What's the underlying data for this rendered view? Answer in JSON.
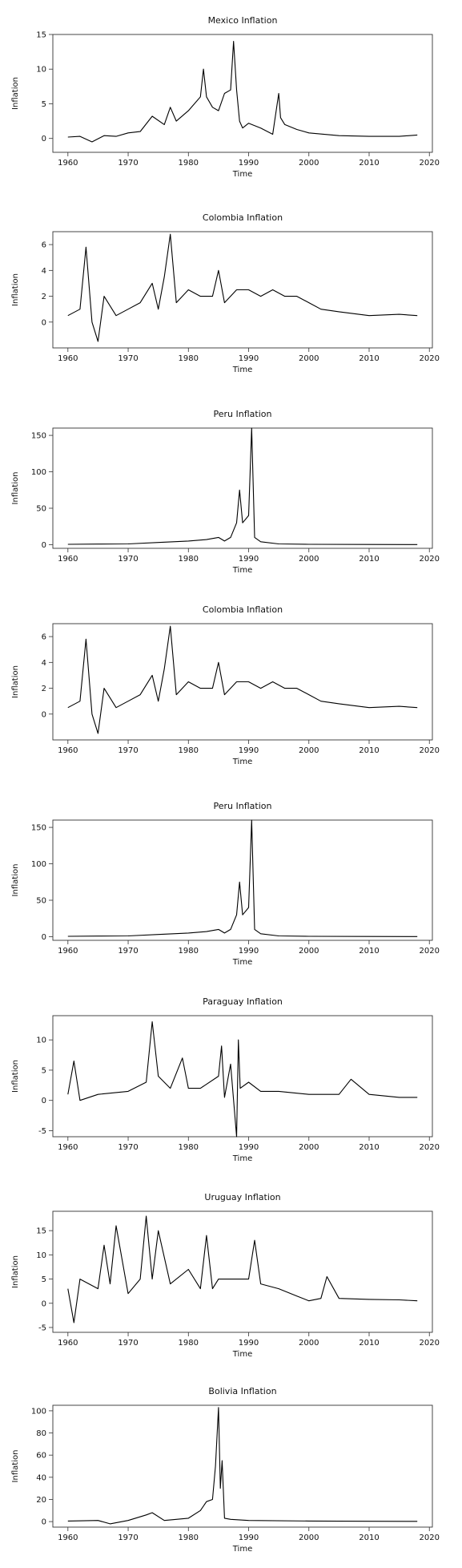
{
  "chart_data": [
    {
      "type": "line",
      "title": "Mexico Inflation",
      "xlabel": "Time",
      "ylabel": "Inflation",
      "xlim": [
        1960,
        2018
      ],
      "ylim": [
        -2,
        15
      ],
      "xticks": [
        1960,
        1970,
        1980,
        1990,
        2000,
        2010,
        2020
      ],
      "yticks": [
        0,
        5,
        10,
        15
      ],
      "grid": false,
      "series": [
        {
          "x": [
            1960,
            1962,
            1964,
            1966,
            1968,
            1970,
            1972,
            1974,
            1976,
            1977,
            1978,
            1980,
            1982,
            1982.5,
            1983,
            1984,
            1985,
            1986,
            1987,
            1987.5,
            1988,
            1988.5,
            1989,
            1990,
            1992,
            1994,
            1995,
            1995.3,
            1996,
            1998,
            2000,
            2005,
            2010,
            2015,
            2018
          ],
          "y": [
            0.2,
            0.3,
            -0.5,
            0.4,
            0.3,
            0.8,
            1.0,
            3.2,
            2.0,
            4.5,
            2.5,
            4.0,
            6.0,
            10.0,
            6.0,
            4.5,
            4.0,
            6.5,
            7.0,
            14.0,
            7.0,
            2.5,
            1.5,
            2.2,
            1.5,
            0.6,
            6.5,
            3.0,
            2.0,
            1.3,
            0.8,
            0.4,
            0.3,
            0.3,
            0.5
          ]
        }
      ]
    },
    {
      "type": "line",
      "title": "Colombia Inflation",
      "xlabel": "Time",
      "ylabel": "Inflation",
      "xlim": [
        1960,
        2018
      ],
      "ylim": [
        -2,
        7
      ],
      "xticks": [
        1960,
        1970,
        1980,
        1990,
        2000,
        2010,
        2020
      ],
      "yticks": [
        0,
        2,
        4,
        6
      ],
      "grid": false,
      "series": [
        {
          "x": [
            1960,
            1962,
            1963,
            1964,
            1965,
            1966,
            1968,
            1970,
            1972,
            1974,
            1975,
            1976,
            1977,
            1978,
            1980,
            1982,
            1984,
            1985,
            1986,
            1988,
            1990,
            1992,
            1994,
            1996,
            1998,
            2000,
            2002,
            2005,
            2010,
            2015,
            2018
          ],
          "y": [
            0.5,
            1.0,
            5.8,
            0.0,
            -1.5,
            2.0,
            0.5,
            1.0,
            1.5,
            3.0,
            1.0,
            3.5,
            6.8,
            1.5,
            2.5,
            2.0,
            2.0,
            4.0,
            1.5,
            2.5,
            2.5,
            2.0,
            2.5,
            2.0,
            2.0,
            1.5,
            1.0,
            0.8,
            0.5,
            0.6,
            0.5
          ]
        }
      ]
    },
    {
      "type": "line",
      "title": "Peru Inflation",
      "xlabel": "Time",
      "ylabel": "Inflation",
      "xlim": [
        1960,
        2018
      ],
      "ylim": [
        -5,
        160
      ],
      "xticks": [
        1960,
        1970,
        1980,
        1990,
        2000,
        2010,
        2020
      ],
      "yticks": [
        0,
        50,
        100,
        150
      ],
      "grid": false,
      "series": [
        {
          "x": [
            1960,
            1965,
            1970,
            1975,
            1980,
            1983,
            1985,
            1986,
            1987,
            1988,
            1988.5,
            1989,
            1990,
            1990.5,
            1991,
            1992,
            1995,
            2000,
            2010,
            2018
          ],
          "y": [
            0.5,
            0.8,
            1.0,
            3.0,
            5.0,
            7.0,
            10.0,
            5.0,
            10.0,
            30.0,
            75.0,
            30.0,
            40.0,
            160.0,
            10.0,
            4.0,
            1.0,
            0.5,
            0.3,
            0.2
          ]
        }
      ]
    },
    {
      "type": "line",
      "title": "Colombia Inflation",
      "xlabel": "Time",
      "ylabel": "Inflation",
      "xlim": [
        1960,
        2018
      ],
      "ylim": [
        -2,
        7
      ],
      "xticks": [
        1960,
        1970,
        1980,
        1990,
        2000,
        2010,
        2020
      ],
      "yticks": [
        0,
        2,
        4,
        6
      ],
      "grid": false,
      "series": [
        {
          "x": [
            1960,
            1962,
            1963,
            1964,
            1965,
            1966,
            1968,
            1970,
            1972,
            1974,
            1975,
            1976,
            1977,
            1978,
            1980,
            1982,
            1984,
            1985,
            1986,
            1988,
            1990,
            1992,
            1994,
            1996,
            1998,
            2000,
            2002,
            2005,
            2010,
            2015,
            2018
          ],
          "y": [
            0.5,
            1.0,
            5.8,
            0.0,
            -1.5,
            2.0,
            0.5,
            1.0,
            1.5,
            3.0,
            1.0,
            3.5,
            6.8,
            1.5,
            2.5,
            2.0,
            2.0,
            4.0,
            1.5,
            2.5,
            2.5,
            2.0,
            2.5,
            2.0,
            2.0,
            1.5,
            1.0,
            0.8,
            0.5,
            0.6,
            0.5
          ]
        }
      ]
    },
    {
      "type": "line",
      "title": "Peru Inflation",
      "xlabel": "Time",
      "ylabel": "Inflation",
      "xlim": [
        1960,
        2018
      ],
      "ylim": [
        -5,
        160
      ],
      "xticks": [
        1960,
        1970,
        1980,
        1990,
        2000,
        2010,
        2020
      ],
      "yticks": [
        0,
        50,
        100,
        150
      ],
      "grid": false,
      "series": [
        {
          "x": [
            1960,
            1965,
            1970,
            1975,
            1980,
            1983,
            1985,
            1986,
            1987,
            1988,
            1988.5,
            1989,
            1990,
            1990.5,
            1991,
            1992,
            1995,
            2000,
            2010,
            2018
          ],
          "y": [
            0.5,
            0.8,
            1.0,
            3.0,
            5.0,
            7.0,
            10.0,
            5.0,
            10.0,
            30.0,
            75.0,
            30.0,
            40.0,
            160.0,
            10.0,
            4.0,
            1.0,
            0.5,
            0.3,
            0.2
          ]
        }
      ]
    },
    {
      "type": "line",
      "title": "Paraguay Inflation",
      "xlabel": "Time",
      "ylabel": "Inflation",
      "xlim": [
        1960,
        2018
      ],
      "ylim": [
        -6,
        14
      ],
      "xticks": [
        1960,
        1970,
        1980,
        1990,
        2000,
        2010,
        2020
      ],
      "yticks": [
        -5,
        0,
        5,
        10
      ],
      "grid": false,
      "series": [
        {
          "x": [
            1960,
            1961,
            1962,
            1965,
            1970,
            1973,
            1974,
            1975,
            1977,
            1979,
            1980,
            1982,
            1985,
            1985.5,
            1986,
            1987,
            1988,
            1988.3,
            1988.6,
            1990,
            1992,
            1995,
            2000,
            2005,
            2007,
            2010,
            2015,
            2018
          ],
          "y": [
            1.0,
            6.5,
            0.0,
            1.0,
            1.5,
            3.0,
            13.0,
            4.0,
            2.0,
            7.0,
            2.0,
            2.0,
            4.0,
            9.0,
            0.5,
            6.0,
            -6.0,
            10.0,
            2.0,
            3.0,
            1.5,
            1.5,
            1.0,
            1.0,
            3.5,
            1.0,
            0.5,
            0.5
          ]
        }
      ]
    },
    {
      "type": "line",
      "title": "Uruguay Inflation",
      "xlabel": "Time",
      "ylabel": "Inflation",
      "xlim": [
        1960,
        2018
      ],
      "ylim": [
        -6,
        19
      ],
      "xticks": [
        1960,
        1970,
        1980,
        1990,
        2000,
        2010,
        2020
      ],
      "yticks": [
        -5,
        0,
        5,
        10,
        15
      ],
      "grid": false,
      "series": [
        {
          "x": [
            1960,
            1961,
            1962,
            1965,
            1966,
            1967,
            1968,
            1970,
            1972,
            1973,
            1974,
            1975,
            1977,
            1980,
            1982,
            1983,
            1984,
            1985,
            1988,
            1990,
            1991,
            1992,
            1995,
            1998,
            2000,
            2002,
            2003,
            2005,
            2010,
            2015,
            2018
          ],
          "y": [
            3.0,
            -4.0,
            5.0,
            3.0,
            12.0,
            4.0,
            16.0,
            2.0,
            5.0,
            18.0,
            5.0,
            15.0,
            4.0,
            7.0,
            3.0,
            14.0,
            3.0,
            5.0,
            5.0,
            5.0,
            13.0,
            4.0,
            3.0,
            1.5,
            0.5,
            1.0,
            5.5,
            1.0,
            0.8,
            0.7,
            0.5
          ]
        }
      ]
    },
    {
      "type": "line",
      "title": "Bolivia Inflation",
      "xlabel": "Time",
      "ylabel": "Inflation",
      "xlim": [
        1960,
        2018
      ],
      "ylim": [
        -5,
        105
      ],
      "xticks": [
        1960,
        1970,
        1980,
        1990,
        2000,
        2010,
        2020
      ],
      "yticks": [
        0,
        20,
        40,
        60,
        80,
        100
      ],
      "grid": false,
      "series": [
        {
          "x": [
            1960,
            1965,
            1967,
            1970,
            1973,
            1974,
            1976,
            1980,
            1982,
            1983,
            1984,
            1984.5,
            1985,
            1985.3,
            1985.6,
            1986,
            1987,
            1990,
            2000,
            2010,
            2018
          ],
          "y": [
            0.5,
            1.0,
            -2.0,
            1.0,
            6.0,
            8.0,
            1.0,
            3.0,
            10.0,
            18.0,
            20.0,
            50.0,
            103.0,
            30.0,
            55.0,
            3.0,
            2.0,
            1.0,
            0.5,
            0.3,
            0.2
          ]
        }
      ]
    }
  ]
}
